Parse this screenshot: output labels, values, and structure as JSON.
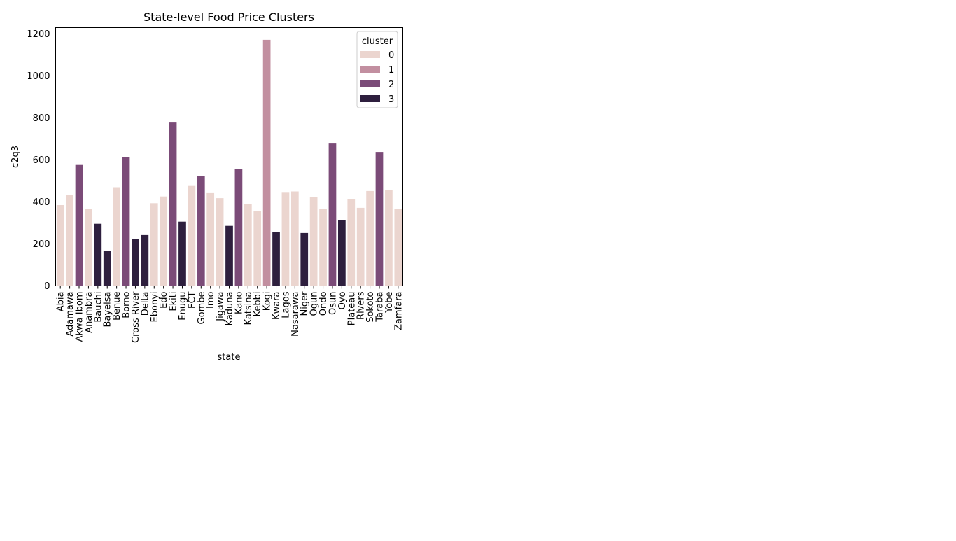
{
  "chart_data": {
    "type": "bar",
    "title": "State-level Food Price Clusters",
    "xlabel": "state",
    "ylabel": "c2q3",
    "ylim": [
      0,
      1230
    ],
    "yticks": [
      0,
      200,
      400,
      600,
      800,
      1000,
      1200
    ],
    "ytick_labels": [
      "0",
      "200",
      "400",
      "600",
      "800",
      "1000",
      "1200"
    ],
    "grid": false,
    "legend": {
      "title": "cluster",
      "placement": "top-right",
      "entries": [
        {
          "label": "0",
          "color": "#ebd5cf"
        },
        {
          "label": "1",
          "color": "#c28fa0"
        },
        {
          "label": "2",
          "color": "#7b4b78"
        },
        {
          "label": "3",
          "color": "#2e1f3e"
        }
      ]
    },
    "categories": [
      "Abia",
      "Adamawa",
      "Akwa Ibom",
      "Anambra",
      "Bauchi",
      "Bayelsa",
      "Benue",
      "Borno",
      "Cross River",
      "Delta",
      "Ebonyi",
      "Edo",
      "Ekiti",
      "Enugu",
      "FCT",
      "Gombe",
      "Imo",
      "Jigawa",
      "Kaduna",
      "Kano",
      "Katsina",
      "Kebbi",
      "Kogi",
      "Kwara",
      "Lagos",
      "Nasarawa",
      "Niger",
      "Ogun",
      "Ondo",
      "Osun",
      "Oyo",
      "Plateau",
      "Rivers",
      "Sokoto",
      "Taraba",
      "Yobe",
      "Zamfara"
    ],
    "values": [
      385,
      432,
      576,
      366,
      296,
      166,
      470,
      614,
      222,
      242,
      394,
      426,
      778,
      306,
      476,
      522,
      442,
      418,
      286,
      556,
      390,
      356,
      1172,
      256,
      444,
      450,
      252,
      424,
      368,
      678,
      312,
      412,
      372,
      452,
      638,
      456,
      368
    ],
    "clusters": [
      0,
      0,
      2,
      0,
      3,
      3,
      0,
      2,
      3,
      3,
      0,
      0,
      2,
      3,
      0,
      2,
      0,
      0,
      3,
      2,
      0,
      0,
      1,
      3,
      0,
      0,
      3,
      0,
      0,
      2,
      3,
      0,
      0,
      0,
      2,
      0,
      0
    ]
  }
}
